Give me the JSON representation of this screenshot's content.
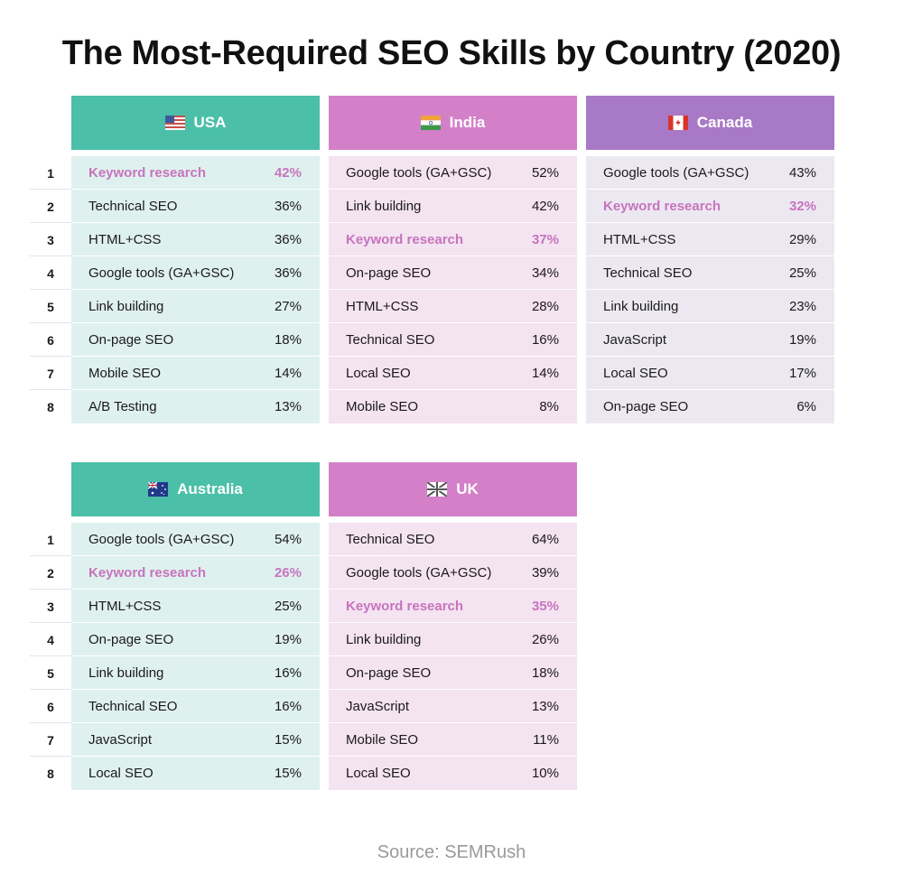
{
  "chart_data": {
    "type": "table",
    "title": "The Most-Required SEO Skills by Country (2020)",
    "source": "Source: SEMRush",
    "ranks": [
      "1",
      "2",
      "3",
      "4",
      "5",
      "6",
      "7",
      "8"
    ],
    "colors": {
      "usa_header": "#4bbfa7",
      "usa_body": "#dff1ee",
      "india_header": "#d480c9",
      "india_body": "#f4e3f0",
      "canada_header": "#a879c7",
      "canada_body": "#ece8f1",
      "highlight": "#c774be"
    },
    "countries": [
      {
        "name": "USA",
        "flag": "us-flag-icon",
        "rows": [
          {
            "skill": "Keyword research",
            "pct": "42%",
            "highlight": true
          },
          {
            "skill": "Technical SEO",
            "pct": "36%",
            "highlight": false
          },
          {
            "skill": "HTML+CSS",
            "pct": "36%",
            "highlight": false
          },
          {
            "skill": "Google tools (GA+GSC)",
            "pct": "36%",
            "highlight": false
          },
          {
            "skill": "Link building",
            "pct": "27%",
            "highlight": false
          },
          {
            "skill": "On-page SEO",
            "pct": "18%",
            "highlight": false
          },
          {
            "skill": "Mobile SEO",
            "pct": "14%",
            "highlight": false
          },
          {
            "skill": "A/B Testing",
            "pct": "13%",
            "highlight": false
          }
        ]
      },
      {
        "name": "India",
        "flag": "india-flag-icon",
        "rows": [
          {
            "skill": "Google tools (GA+GSC)",
            "pct": "52%",
            "highlight": false
          },
          {
            "skill": "Link building",
            "pct": "42%",
            "highlight": false
          },
          {
            "skill": "Keyword research",
            "pct": "37%",
            "highlight": true
          },
          {
            "skill": "On-page SEO",
            "pct": "34%",
            "highlight": false
          },
          {
            "skill": "HTML+CSS",
            "pct": "28%",
            "highlight": false
          },
          {
            "skill": "Technical SEO",
            "pct": "16%",
            "highlight": false
          },
          {
            "skill": "Local SEO",
            "pct": "14%",
            "highlight": false
          },
          {
            "skill": "Mobile SEO",
            "pct": "8%",
            "highlight": false
          }
        ]
      },
      {
        "name": "Canada",
        "flag": "canada-flag-icon",
        "rows": [
          {
            "skill": "Google tools (GA+GSC)",
            "pct": "43%",
            "highlight": false
          },
          {
            "skill": "Keyword research",
            "pct": "32%",
            "highlight": true
          },
          {
            "skill": "HTML+CSS",
            "pct": "29%",
            "highlight": false
          },
          {
            "skill": "Technical SEO",
            "pct": "25%",
            "highlight": false
          },
          {
            "skill": "Link building",
            "pct": "23%",
            "highlight": false
          },
          {
            "skill": "JavaScript",
            "pct": "19%",
            "highlight": false
          },
          {
            "skill": "Local SEO",
            "pct": "17%",
            "highlight": false
          },
          {
            "skill": "On-page SEO",
            "pct": "6%",
            "highlight": false
          }
        ]
      },
      {
        "name": "Australia",
        "flag": "australia-flag-icon",
        "rows": [
          {
            "skill": "Google tools (GA+GSC)",
            "pct": "54%",
            "highlight": false
          },
          {
            "skill": "Keyword research",
            "pct": "26%",
            "highlight": true
          },
          {
            "skill": "HTML+CSS",
            "pct": "25%",
            "highlight": false
          },
          {
            "skill": "On-page SEO",
            "pct": "19%",
            "highlight": false
          },
          {
            "skill": "Link building",
            "pct": "16%",
            "highlight": false
          },
          {
            "skill": "Technical SEO",
            "pct": "16%",
            "highlight": false
          },
          {
            "skill": "JavaScript",
            "pct": "15%",
            "highlight": false
          },
          {
            "skill": "Local SEO",
            "pct": "15%",
            "highlight": false
          }
        ]
      },
      {
        "name": "UK",
        "flag": "uk-flag-icon",
        "rows": [
          {
            "skill": "Technical SEO",
            "pct": "64%",
            "highlight": false
          },
          {
            "skill": "Google tools (GA+GSC)",
            "pct": "39%",
            "highlight": false
          },
          {
            "skill": "Keyword research",
            "pct": "35%",
            "highlight": true
          },
          {
            "skill": "Link building",
            "pct": "26%",
            "highlight": false
          },
          {
            "skill": "On-page SEO",
            "pct": "18%",
            "highlight": false
          },
          {
            "skill": "JavaScript",
            "pct": "13%",
            "highlight": false
          },
          {
            "skill": "Mobile SEO",
            "pct": "11%",
            "highlight": false
          },
          {
            "skill": "Local SEO",
            "pct": "10%",
            "highlight": false
          }
        ]
      }
    ]
  }
}
